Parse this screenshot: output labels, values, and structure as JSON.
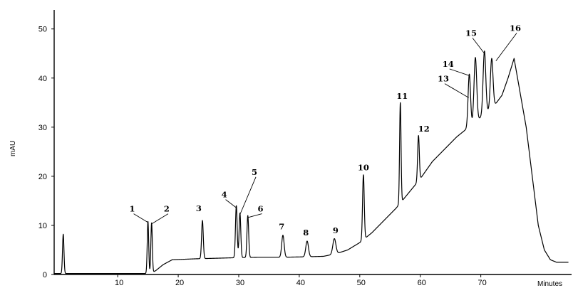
{
  "chart_data": {
    "type": "line",
    "title": "",
    "xlabel": "Minutes",
    "ylabel": "mAU",
    "xlim": [
      -0.5,
      85
    ],
    "ylim": [
      0,
      53
    ],
    "xticks": [
      10,
      20,
      30,
      40,
      50,
      60,
      70
    ],
    "yticks": [
      0,
      10,
      20,
      30,
      40,
      50
    ],
    "grid": false,
    "baseline": [
      [
        -0.5,
        0.2
      ],
      [
        14.5,
        0.2
      ],
      [
        15.6,
        0.3
      ],
      [
        16.3,
        0.8
      ],
      [
        17.5,
        2.0
      ],
      [
        19,
        3.0
      ],
      [
        21,
        3.1
      ],
      [
        23,
        3.2
      ],
      [
        26,
        3.3
      ],
      [
        29,
        3.4
      ],
      [
        33,
        3.5
      ],
      [
        37,
        3.5
      ],
      [
        41,
        3.6
      ],
      [
        44,
        3.7
      ],
      [
        46,
        4.2
      ],
      [
        48,
        5.0
      ],
      [
        50,
        6.5
      ],
      [
        52,
        8.5
      ],
      [
        54,
        11.0
      ],
      [
        56,
        13.5
      ],
      [
        58,
        16.5
      ],
      [
        60,
        19.5
      ],
      [
        62,
        23.0
      ],
      [
        64,
        25.5
      ],
      [
        66,
        28.0
      ],
      [
        68,
        30.0
      ],
      [
        70,
        32.0
      ],
      [
        72,
        34.0
      ],
      [
        73.5,
        36.5
      ],
      [
        74.5,
        40.0
      ],
      [
        75.5,
        44.0
      ],
      [
        76.5,
        37.0
      ],
      [
        77.5,
        30.0
      ],
      [
        78.5,
        20.0
      ],
      [
        79.5,
        10.0
      ],
      [
        80.5,
        5.0
      ],
      [
        81.5,
        3.0
      ],
      [
        82.5,
        2.5
      ],
      [
        84.5,
        2.5
      ]
    ],
    "peaks": [
      {
        "rt": 1.0,
        "apex": 8.2,
        "width": 0.12,
        "label": ""
      },
      {
        "rt": 15.0,
        "apex": 10.8,
        "width": 0.12,
        "label": "1"
      },
      {
        "rt": 15.6,
        "apex": 10.5,
        "width": 0.12,
        "label": "2"
      },
      {
        "rt": 24.0,
        "apex": 11.0,
        "width": 0.14,
        "label": "3"
      },
      {
        "rt": 29.6,
        "apex": 14.0,
        "width": 0.14,
        "label": "4"
      },
      {
        "rt": 30.2,
        "apex": 12.5,
        "width": 0.14,
        "label": "5"
      },
      {
        "rt": 31.5,
        "apex": 12.0,
        "width": 0.14,
        "label": "6"
      },
      {
        "rt": 37.3,
        "apex": 8.0,
        "width": 0.2,
        "label": "7"
      },
      {
        "rt": 41.3,
        "apex": 6.8,
        "width": 0.22,
        "label": "8"
      },
      {
        "rt": 45.8,
        "apex": 7.3,
        "width": 0.25,
        "label": "9"
      },
      {
        "rt": 50.6,
        "apex": 20.3,
        "width": 0.14,
        "label": "10"
      },
      {
        "rt": 56.7,
        "apex": 35.0,
        "width": 0.12,
        "label": "11"
      },
      {
        "rt": 59.7,
        "apex": 28.3,
        "width": 0.14,
        "label": "12"
      },
      {
        "rt": 68.1,
        "apex": 40.8,
        "width": 0.2,
        "label": "13"
      },
      {
        "rt": 69.1,
        "apex": 44.2,
        "width": 0.22,
        "label": "14"
      },
      {
        "rt": 70.6,
        "apex": 45.5,
        "width": 0.22,
        "label": "15"
      },
      {
        "rt": 71.8,
        "apex": 44.0,
        "width": 0.22,
        "label": "16"
      }
    ],
    "peak_labels": [
      {
        "text": "1",
        "x": 12.4,
        "y": 12.8,
        "tip": [
          15.0,
          10.6
        ]
      },
      {
        "text": "2",
        "x": 18.1,
        "y": 12.8,
        "tip": [
          15.6,
          10.3
        ]
      },
      {
        "text": "3",
        "x": 23.4,
        "y": 12.9,
        "tip": null
      },
      {
        "text": "4",
        "x": 27.6,
        "y": 15.7,
        "tip": [
          29.6,
          13.6
        ]
      },
      {
        "text": "5",
        "x": 32.6,
        "y": 20.3,
        "tip": [
          30.2,
          12.2
        ]
      },
      {
        "text": "6",
        "x": 33.6,
        "y": 12.8,
        "tip": [
          31.5,
          11.6
        ]
      },
      {
        "text": "7",
        "x": 37.1,
        "y": 9.2,
        "tip": null
      },
      {
        "text": "8",
        "x": 41.1,
        "y": 8.0,
        "tip": null
      },
      {
        "text": "9",
        "x": 46.0,
        "y": 8.4,
        "tip": null
      },
      {
        "text": "10",
        "x": 50.6,
        "y": 21.2,
        "tip": null
      },
      {
        "text": "11",
        "x": 57.0,
        "y": 35.8,
        "tip": null
      },
      {
        "text": "12",
        "x": 60.6,
        "y": 29.1,
        "tip": null
      },
      {
        "text": "13",
        "x": 63.8,
        "y": 39.3,
        "tip": [
          68.0,
          36.0
        ]
      },
      {
        "text": "14",
        "x": 64.6,
        "y": 42.3,
        "tip": [
          68.1,
          40.5
        ]
      },
      {
        "text": "15",
        "x": 68.4,
        "y": 48.6,
        "tip": [
          70.6,
          45.0
        ]
      },
      {
        "text": "16",
        "x": 75.7,
        "y": 49.6,
        "tip": [
          72.5,
          43.5
        ]
      }
    ]
  }
}
